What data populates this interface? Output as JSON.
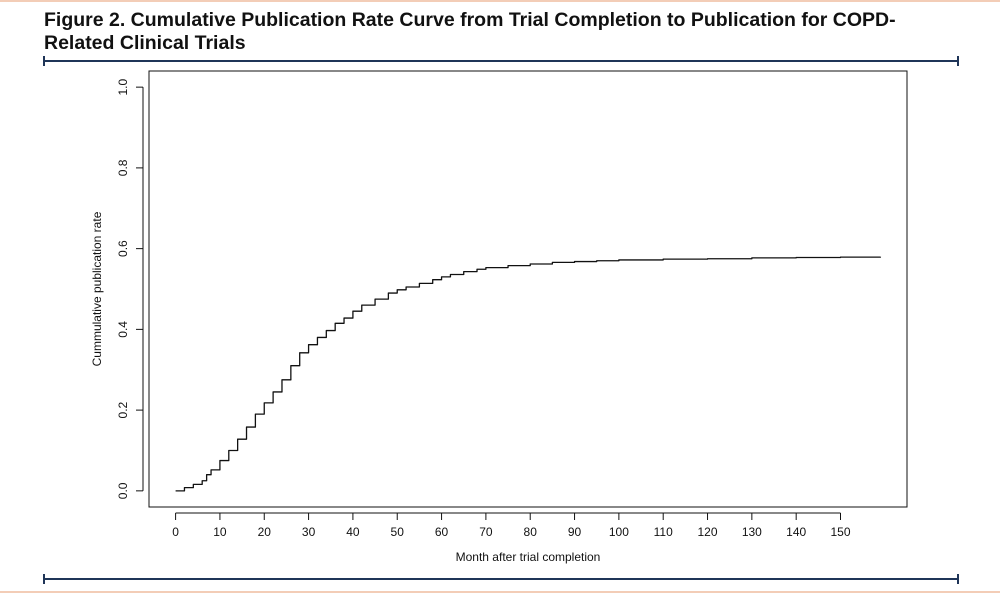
{
  "figure": {
    "title": "Figure 2. Cumulative Publication Rate Curve from Trial Completion to Publication for COPD-Related Clinical Trials"
  },
  "colors": {
    "accent_rule": "#1f3558",
    "page_edge": "#f3cdb7",
    "curve": "#111111"
  },
  "chart_data": {
    "type": "line",
    "title": "",
    "xlabel": "Month after trial completion",
    "ylabel": "Cummulative publication rate",
    "xlim": [
      -6,
      165
    ],
    "ylim": [
      -0.04,
      1.04
    ],
    "xticks": [
      0,
      10,
      20,
      30,
      40,
      50,
      60,
      70,
      80,
      90,
      100,
      110,
      120,
      130,
      140,
      150
    ],
    "yticks": [
      0.0,
      0.2,
      0.4,
      0.6,
      0.8,
      1.0
    ],
    "ytick_labels": [
      "0.0",
      "0.2",
      "0.4",
      "0.6",
      "0.8",
      "1.0"
    ],
    "grid": false,
    "series": [
      {
        "x": [
          0,
          2,
          4,
          6,
          7,
          8,
          10,
          12,
          14,
          16,
          18,
          20,
          22,
          24,
          26,
          28,
          30,
          32,
          34,
          36,
          38,
          40,
          42,
          45,
          48,
          50,
          52,
          55,
          58,
          60,
          62,
          65,
          68,
          70,
          75,
          80,
          85,
          90,
          95,
          100,
          110,
          120,
          130,
          140,
          150,
          159
        ],
        "y": [
          0.0,
          0.008,
          0.016,
          0.025,
          0.04,
          0.052,
          0.075,
          0.1,
          0.128,
          0.158,
          0.19,
          0.218,
          0.245,
          0.275,
          0.31,
          0.342,
          0.362,
          0.38,
          0.397,
          0.415,
          0.428,
          0.445,
          0.46,
          0.475,
          0.49,
          0.498,
          0.505,
          0.514,
          0.523,
          0.53,
          0.536,
          0.543,
          0.549,
          0.553,
          0.558,
          0.562,
          0.566,
          0.568,
          0.57,
          0.572,
          0.574,
          0.575,
          0.577,
          0.578,
          0.579,
          0.58
        ]
      }
    ]
  }
}
